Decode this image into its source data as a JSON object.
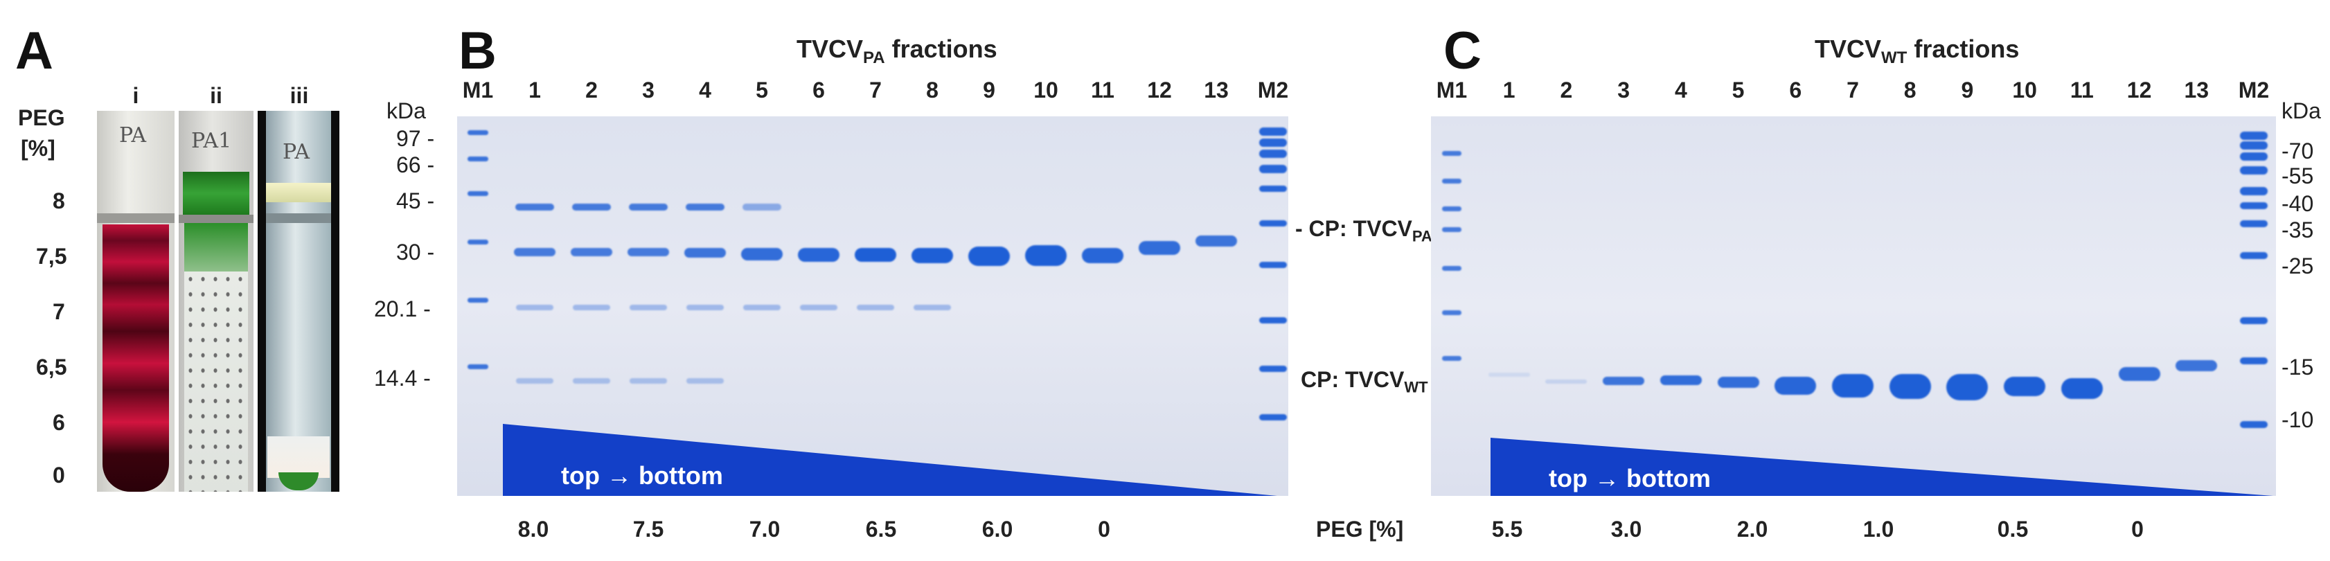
{
  "panel_a": {
    "letter": "A",
    "peg_label_line1": "PEG",
    "peg_label_line2": "[%]",
    "peg_values": [
      "8",
      "7,5",
      "7",
      "6,5",
      "6",
      "0"
    ],
    "tubes": [
      {
        "label": "i",
        "cap_text": "PA"
      },
      {
        "label": "ii",
        "cap_text": "PA1"
      },
      {
        "label": "iii",
        "cap_text": "PA"
      }
    ]
  },
  "panel_b": {
    "letter": "B",
    "title_main": "TVCV",
    "title_sub": "PA",
    "title_tail": " fractions",
    "lanes": [
      "M1",
      "1",
      "2",
      "3",
      "4",
      "5",
      "6",
      "7",
      "8",
      "9",
      "10",
      "11",
      "12",
      "13",
      "M2"
    ],
    "kda_label": "kDa",
    "markers": [
      "97 -",
      "66 -",
      "45 -",
      "30 -",
      "20.1 -",
      "14.4 -"
    ],
    "cp_label_main": "- CP: TVCV",
    "cp_label_sub": "PA",
    "wedge_text": "top → bottom",
    "peg_values": [
      "8.0",
      "7.5",
      "7.0",
      "6.5",
      "6.0",
      "0"
    ]
  },
  "middle": {
    "cp_wt_main": "CP: TVCV",
    "cp_wt_sub": "WT",
    "cp_wt_tail": " -",
    "peg_axis_label": "PEG [%]"
  },
  "panel_c": {
    "letter": "C",
    "title_main": "TVCV",
    "title_sub": "WT",
    "title_tail": " fractions",
    "lanes": [
      "M1",
      "1",
      "2",
      "3",
      "4",
      "5",
      "6",
      "7",
      "8",
      "9",
      "10",
      "11",
      "12",
      "13",
      "M2"
    ],
    "kda_label": "kDa",
    "markers": [
      "-70",
      "-55",
      "-40",
      "-35",
      "-25",
      "-15",
      "-10"
    ],
    "wedge_text": "top → bottom",
    "peg_values": [
      "5.5",
      "3.0",
      "2.0",
      "1.0",
      "0.5",
      "0"
    ]
  },
  "colors": {
    "gel_bg": "#e3e7f3",
    "band_blue": "#1e5fd6",
    "wedge_blue": "#1340c8",
    "tube_red": "#8b0a2a",
    "tube_green": "#2e8a2a"
  }
}
